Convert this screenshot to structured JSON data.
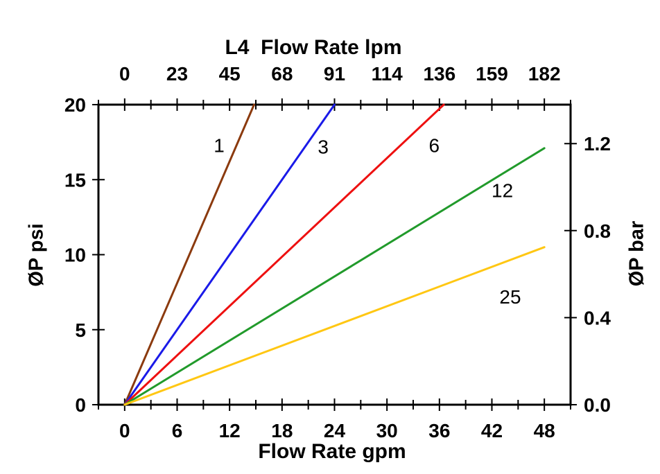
{
  "chart_data": {
    "type": "line",
    "title": "L4  Flow Rate lpm",
    "xlabel": "Flow Rate gpm",
    "ylabel": "ØP psi",
    "ylabel_right": "ØP bar",
    "grid": false,
    "legend": "inline labels next to each line",
    "x_axis_bottom": {
      "unit": "gpm",
      "tick_values": [
        0,
        6,
        12,
        18,
        24,
        30,
        36,
        42,
        48
      ],
      "minor_tick_step": 3,
      "range": [
        -3,
        51
      ]
    },
    "x_axis_top": {
      "unit": "lpm",
      "tick_labels": [
        "0",
        "23",
        "45",
        "68",
        "91",
        "114",
        "136",
        "159",
        "182"
      ],
      "note": "same tick positions as bottom axis, values converted gpm to lpm"
    },
    "y_axis_left": {
      "unit": "psi",
      "tick_values": [
        0,
        5,
        10,
        15,
        20
      ],
      "range": [
        0,
        20
      ]
    },
    "y_axis_right": {
      "unit": "bar",
      "tick_labels": [
        "0.0",
        "0.4",
        "0.8",
        "1.2"
      ],
      "tick_values_bar": [
        0.0,
        0.4,
        0.8,
        1.2
      ],
      "psi_per_bar": 14.5038
    },
    "series": [
      {
        "name": "1",
        "color": "#8B3A0E",
        "points_gpm_psi": [
          [
            0,
            0
          ],
          [
            14.8,
            20
          ]
        ],
        "label_pos_gpm_psi": [
          10.8,
          17.3
        ]
      },
      {
        "name": "3",
        "color": "#1A1AE8",
        "points_gpm_psi": [
          [
            0,
            0
          ],
          [
            24,
            20
          ]
        ],
        "label_pos_gpm_psi": [
          22.7,
          17.2
        ]
      },
      {
        "name": "6",
        "color": "#EE1010",
        "points_gpm_psi": [
          [
            0,
            0
          ],
          [
            36.5,
            20
          ]
        ],
        "label_pos_gpm_psi": [
          35.4,
          17.3
        ]
      },
      {
        "name": "12",
        "color": "#219A2B",
        "points_gpm_psi": [
          [
            0,
            0
          ],
          [
            48,
            17.1
          ]
        ],
        "label_pos_gpm_psi": [
          43.2,
          14.3
        ]
      },
      {
        "name": "25",
        "color": "#FFC713",
        "points_gpm_psi": [
          [
            0,
            0
          ],
          [
            48,
            10.5
          ]
        ],
        "label_pos_gpm_psi": [
          44.1,
          7.2
        ]
      }
    ],
    "colors": {
      "axis": "#000000",
      "background": "#ffffff",
      "text": "#000000"
    }
  }
}
